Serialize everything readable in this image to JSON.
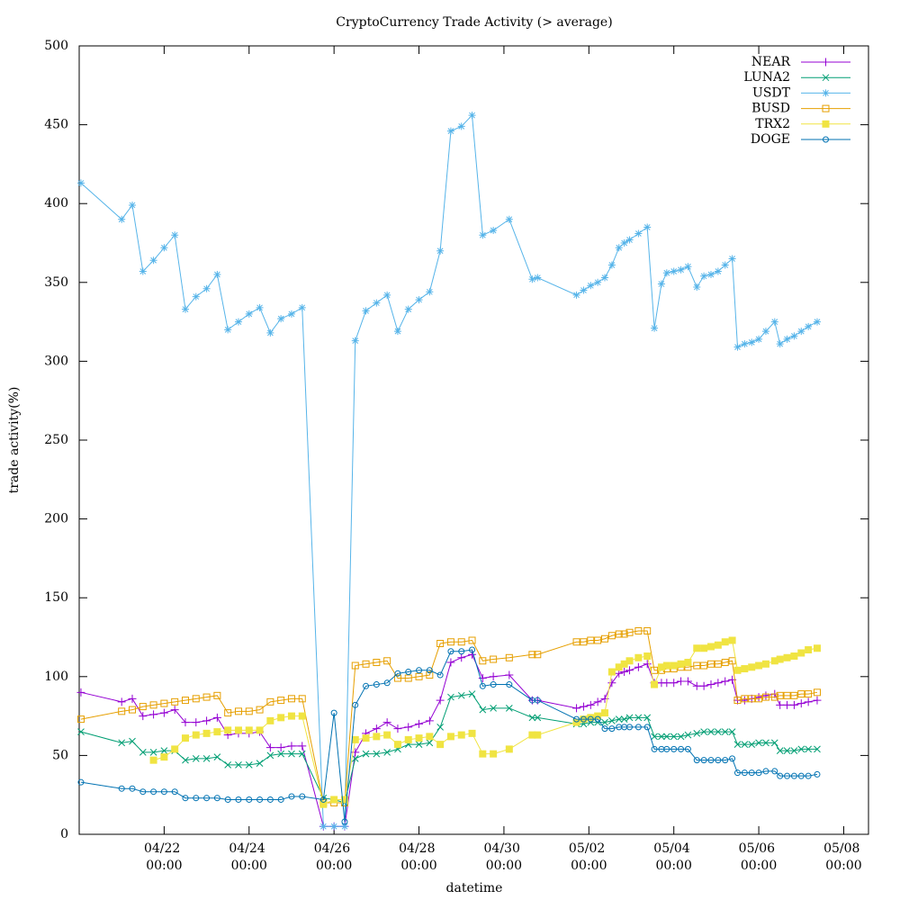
{
  "chart_data": {
    "type": "line",
    "title": "CryptoCurrency Trade Activity (> average)",
    "x_label": "datetime",
    "y_label": "trade activity(%)",
    "legend": "top right",
    "grid": false,
    "x": [
      "04/20 01:00",
      "04/21 00:00",
      "04/21 06:00",
      "04/21 12:00",
      "04/21 18:00",
      "04/22 00:00",
      "04/22 06:00",
      "04/22 12:00",
      "04/22 18:00",
      "04/23 00:00",
      "04/23 06:00",
      "04/23 12:00",
      "04/23 18:00",
      "04/24 00:00",
      "04/24 06:00",
      "04/24 12:00",
      "04/24 18:00",
      "04/25 00:00",
      "04/25 06:00",
      "04/25 18:00",
      "04/26 00:00",
      "04/26 06:00",
      "04/26 12:00",
      "04/26 18:00",
      "04/27 00:00",
      "04/27 06:00",
      "04/27 12:00",
      "04/27 18:00",
      "04/28 00:00",
      "04/28 06:00",
      "04/28 12:00",
      "04/28 18:00",
      "04/29 00:00",
      "04/29 06:00",
      "04/29 12:00",
      "04/29 18:00",
      "04/30 03:00",
      "04/30 16:00",
      "04/30 19:00",
      "05/01 17:00",
      "05/01 21:00",
      "05/02 01:00",
      "05/02 05:00",
      "05/02 09:00",
      "05/02 13:00",
      "05/02 17:00",
      "05/02 20:00",
      "05/02 23:00",
      "05/03 04:00",
      "05/03 09:00",
      "05/03 13:00",
      "05/03 17:00",
      "05/03 20:00",
      "05/04 00:00",
      "05/04 04:00",
      "05/04 08:00",
      "05/04 13:00",
      "05/04 17:00",
      "05/04 21:00",
      "05/05 01:00",
      "05/05 05:00",
      "05/05 09:00",
      "05/05 12:00",
      "05/05 16:00",
      "05/05 20:00",
      "05/06 00:00",
      "05/06 04:00",
      "05/06 09:00",
      "05/06 12:00",
      "05/06 16:00",
      "05/06 20:00",
      "05/07 00:00",
      "05/07 04:00",
      "05/07 09:00"
    ],
    "xlim": [
      "04/20 00:00",
      "05/08 14:00"
    ],
    "xticks": [
      "04/22 00:00",
      "04/24 00:00",
      "04/26 00:00",
      "04/28 00:00",
      "04/30 00:00",
      "05/02 00:00",
      "05/04 00:00",
      "05/06 00:00",
      "05/08 00:00"
    ],
    "ylim": [
      0,
      500
    ],
    "yticks": [
      0,
      50,
      100,
      150,
      200,
      250,
      300,
      350,
      400,
      450,
      500
    ],
    "series": [
      {
        "name": "NEAR",
        "color": "#9400d3",
        "marker": "plus",
        "values": [
          90,
          84,
          86,
          75,
          76,
          77,
          79,
          71,
          71,
          72,
          74,
          63,
          64,
          64,
          65,
          55,
          55,
          56,
          56,
          5,
          5,
          5,
          52,
          64,
          67,
          71,
          67,
          68,
          70,
          72,
          85,
          109,
          112,
          114,
          99,
          100,
          101,
          85,
          85,
          80,
          81,
          82,
          84,
          86,
          96,
          102,
          103,
          104,
          106,
          108,
          96,
          96,
          96,
          96,
          97,
          97,
          94,
          94,
          95,
          96,
          97,
          98,
          85,
          85,
          86,
          87,
          88,
          89,
          82,
          82,
          82,
          83,
          84,
          85
        ]
      },
      {
        "name": "LUNA2",
        "color": "#009e73",
        "marker": "cross",
        "values": [
          65,
          58,
          59,
          52,
          52,
          53,
          53,
          47,
          48,
          48,
          49,
          44,
          44,
          44,
          45,
          50,
          51,
          51,
          51,
          23,
          22,
          20,
          48,
          51,
          51,
          52,
          54,
          57,
          57,
          58,
          68,
          87,
          88,
          89,
          79,
          80,
          80,
          74,
          74,
          70,
          70,
          71,
          71,
          71,
          72,
          73,
          73,
          74,
          74,
          74,
          62,
          62,
          62,
          62,
          62,
          63,
          64,
          65,
          65,
          65,
          65,
          65,
          57,
          57,
          57,
          58,
          58,
          58,
          53,
          53,
          53,
          54,
          54,
          54
        ]
      },
      {
        "name": "USDT",
        "color": "#56b4e9",
        "marker": "star",
        "values": [
          413,
          390,
          399,
          357,
          364,
          372,
          380,
          333,
          341,
          346,
          355,
          320,
          325,
          330,
          334,
          318,
          327,
          330,
          334,
          5,
          5,
          5,
          313,
          332,
          337,
          342,
          319,
          333,
          339,
          344,
          370,
          446,
          449,
          456,
          380,
          383,
          390,
          352,
          353,
          342,
          345,
          348,
          350,
          353,
          361,
          372,
          375,
          377,
          381,
          385,
          321,
          349,
          356,
          357,
          358,
          360,
          347,
          354,
          355,
          357,
          361,
          365,
          309,
          311,
          312,
          314,
          319,
          325,
          311,
          314,
          316,
          319,
          322,
          325
        ]
      },
      {
        "name": "BUSD",
        "color": "#e69f00",
        "marker": "square",
        "values": [
          73,
          78,
          79,
          81,
          82,
          83,
          84,
          85,
          86,
          87,
          88,
          77,
          78,
          78,
          79,
          84,
          85,
          86,
          86,
          20,
          20,
          20,
          107,
          108,
          109,
          110,
          99,
          99,
          100,
          101,
          121,
          122,
          122,
          123,
          110,
          111,
          112,
          114,
          114,
          122,
          122,
          123,
          123,
          124,
          126,
          127,
          127,
          128,
          129,
          129,
          104,
          104,
          105,
          105,
          106,
          106,
          107,
          107,
          108,
          108,
          109,
          110,
          85,
          86,
          86,
          86,
          87,
          87,
          88,
          88,
          88,
          89,
          89,
          90
        ]
      },
      {
        "name": "TRX2",
        "color": "#f0e442",
        "marker": "filled-square",
        "values": [
          null,
          null,
          null,
          null,
          47,
          49,
          54,
          61,
          63,
          64,
          65,
          66,
          66,
          66,
          66,
          72,
          74,
          75,
          75,
          19,
          22,
          22,
          60,
          61,
          62,
          63,
          57,
          60,
          61,
          62,
          57,
          62,
          63,
          64,
          51,
          51,
          54,
          63,
          63,
          71,
          73,
          74,
          75,
          77,
          103,
          106,
          108,
          110,
          112,
          113,
          95,
          106,
          107,
          107,
          108,
          109,
          118,
          118,
          119,
          120,
          122,
          123,
          104,
          105,
          106,
          107,
          108,
          110,
          111,
          112,
          113,
          115,
          117,
          118
        ]
      },
      {
        "name": "DOGE",
        "color": "#0072b2",
        "marker": "circle",
        "values": [
          33,
          29,
          29,
          27,
          27,
          27,
          27,
          23,
          23,
          23,
          23,
          22,
          22,
          22,
          22,
          22,
          22,
          24,
          24,
          22,
          77,
          8,
          82,
          94,
          95,
          96,
          102,
          103,
          104,
          104,
          101,
          116,
          116,
          117,
          94,
          95,
          95,
          85,
          85,
          73,
          73,
          73,
          73,
          67,
          67,
          68,
          68,
          68,
          68,
          68,
          54,
          54,
          54,
          54,
          54,
          54,
          47,
          47,
          47,
          47,
          47,
          48,
          39,
          39,
          39,
          39,
          40,
          40,
          37,
          37,
          37,
          37,
          37,
          38
        ]
      }
    ]
  }
}
